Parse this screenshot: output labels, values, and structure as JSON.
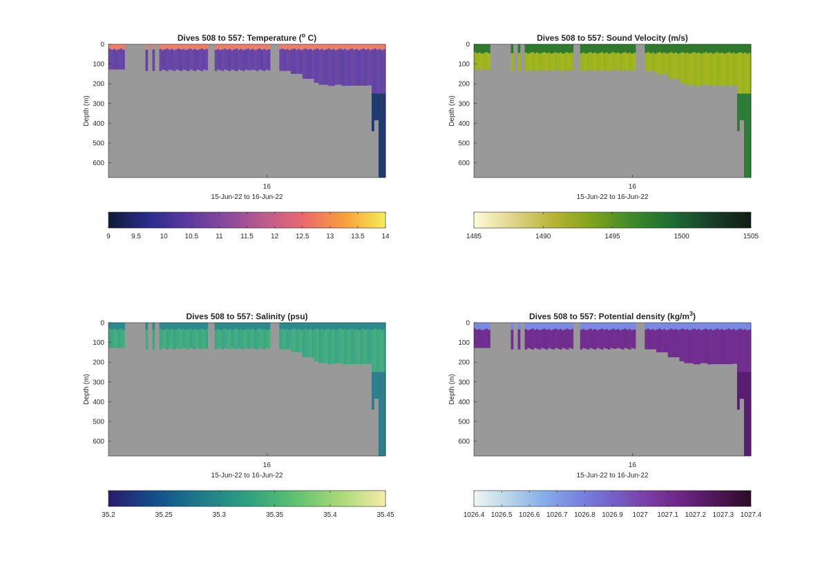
{
  "figure": {
    "background": "#ffffff",
    "land_color": "#999999"
  },
  "chart_data": [
    {
      "type": "heatmap",
      "title_pre": "Dives 508 to 557: Temperature (",
      "title_sup": "o",
      "title_post": " C)",
      "xlabel": "15-Jun-22 to 16-Jun-22",
      "ylabel": "Depth (m)",
      "x_ticks": [
        "16"
      ],
      "y_ticks": [
        "0",
        "100",
        "200",
        "300",
        "400",
        "500",
        "600"
      ],
      "ylim": [
        0,
        675
      ],
      "y_reversed": true,
      "colorbar": {
        "ticks": [
          "9",
          "9.5",
          "10",
          "10.5",
          "11",
          "11.5",
          "12",
          "12.5",
          "13",
          "13.5",
          "14"
        ],
        "range": [
          9,
          14
        ],
        "colors": [
          "#0d1c34",
          "#2a2c8c",
          "#5b3a9c",
          "#8a4a9c",
          "#c05c8c",
          "#ec6d6a",
          "#f8a13a",
          "#f2ef5a"
        ]
      },
      "surface_color": "#e8806a",
      "deep_color": "#5c41a8",
      "mid_color": "#6d49a4",
      "bottom_color": "#1e3a6e",
      "surface_depth_m": 22
    },
    {
      "type": "heatmap",
      "title_pre": "Dives 508 to 557: Sound Velocity (m/s)",
      "title_sup": "",
      "title_post": "",
      "xlabel": "15-Jun-22 to 16-Jun-22",
      "ylabel": "Depth (m)",
      "x_ticks": [
        "16"
      ],
      "y_ticks": [
        "0",
        "100",
        "200",
        "300",
        "400",
        "500",
        "600"
      ],
      "ylim": [
        0,
        675
      ],
      "y_reversed": true,
      "colorbar": {
        "ticks": [
          "1485",
          "1490",
          "1495",
          "1500",
          "1505"
        ],
        "range": [
          1485,
          1505
        ],
        "colors": [
          "#fefbd8",
          "#e0d48a",
          "#b8b434",
          "#7ea21c",
          "#3e8a2a",
          "#1c6e34",
          "#183f28",
          "#101d14"
        ]
      },
      "surface_color": "#2f7a2e",
      "deep_color": "#a8b820",
      "mid_color": "#97b21e",
      "bottom_color": "#2a7a3a",
      "surface_depth_m": 40
    },
    {
      "type": "heatmap",
      "title_pre": "Dives 508 to 557: Salinity (psu)",
      "title_sup": "",
      "title_post": "",
      "xlabel": "15-Jun-22 to 16-Jun-22",
      "ylabel": "Depth (m)",
      "x_ticks": [
        "16"
      ],
      "y_ticks": [
        "0",
        "100",
        "200",
        "300",
        "400",
        "500",
        "600"
      ],
      "ylim": [
        0,
        675
      ],
      "y_reversed": true,
      "colorbar": {
        "ticks": [
          "35.2",
          "35.25",
          "35.3",
          "35.35",
          "35.4",
          "35.45"
        ],
        "range": [
          35.2,
          35.45
        ],
        "colors": [
          "#2a1a6c",
          "#124f8c",
          "#1f7a8a",
          "#2ea080",
          "#5cc070",
          "#a8d878",
          "#f6ecaa"
        ]
      },
      "surface_color": "#2a8a8c",
      "deep_color": "#4ab27e",
      "mid_color": "#3aa484",
      "bottom_color": "#2d7e8c",
      "surface_depth_m": 30
    },
    {
      "type": "heatmap",
      "title_pre": "Dives 508 to 557: Potential density (kg/m",
      "title_sup": "3",
      "title_post": ")",
      "xlabel": "15-Jun-22 to 16-Jun-22",
      "ylabel": "Depth (m)",
      "x_ticks": [
        "16"
      ],
      "y_ticks": [
        "0",
        "100",
        "200",
        "300",
        "400",
        "500",
        "600"
      ],
      "ylim": [
        0,
        675
      ],
      "y_reversed": true,
      "colorbar": {
        "ticks": [
          "1026.4",
          "1026.5",
          "1026.6",
          "1026.7",
          "1026.8",
          "1026.9",
          "1027",
          "1027.1",
          "1027.2",
          "1027.3",
          "1027.4"
        ],
        "range": [
          1026.4,
          1027.4
        ],
        "colors": [
          "#eef6f6",
          "#b8d6e8",
          "#86aeea",
          "#7a84e0",
          "#7462c8",
          "#7a3ea6",
          "#6c2584",
          "#4e1656",
          "#2a0c26"
        ]
      },
      "surface_color": "#7a8ae4",
      "deep_color": "#6e2c8e",
      "mid_color": "#732f90",
      "bottom_color": "#5a1c70",
      "surface_depth_m": 30
    }
  ]
}
